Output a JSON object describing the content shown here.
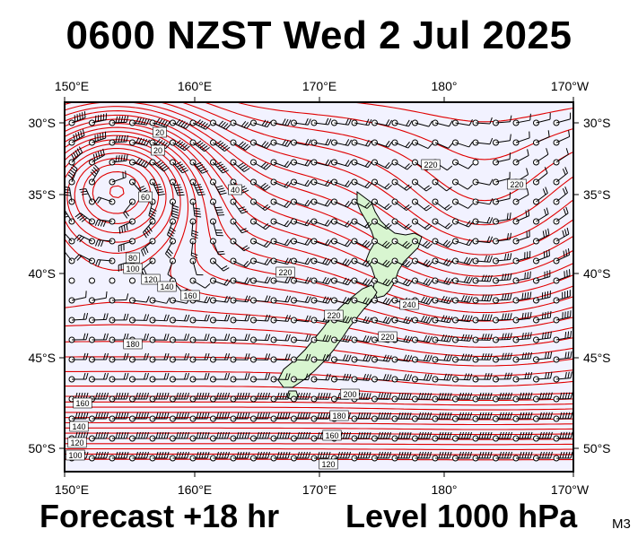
{
  "title": "0600 NZST Wed 2 Jul 2025",
  "footer": {
    "forecast": "Forecast +18 hr",
    "level": "Level 1000 hPa",
    "code": "M3"
  },
  "axes": {
    "lon_labels": [
      "150°E",
      "160°E",
      "170°E",
      "180°",
      "170°W"
    ],
    "lat_labels": [
      "30°S",
      "35°S",
      "40°S",
      "45°S",
      "50°S"
    ]
  },
  "contour_labels": [
    "20",
    "40",
    "60",
    "80",
    "100",
    "120",
    "140",
    "160",
    "180",
    "200",
    "220",
    "240"
  ],
  "colors": {
    "contour": "#e00000",
    "land": "#d8f5d0",
    "coast": "#000000",
    "ocean": "#f2f2ff",
    "wind": "#000000"
  }
}
